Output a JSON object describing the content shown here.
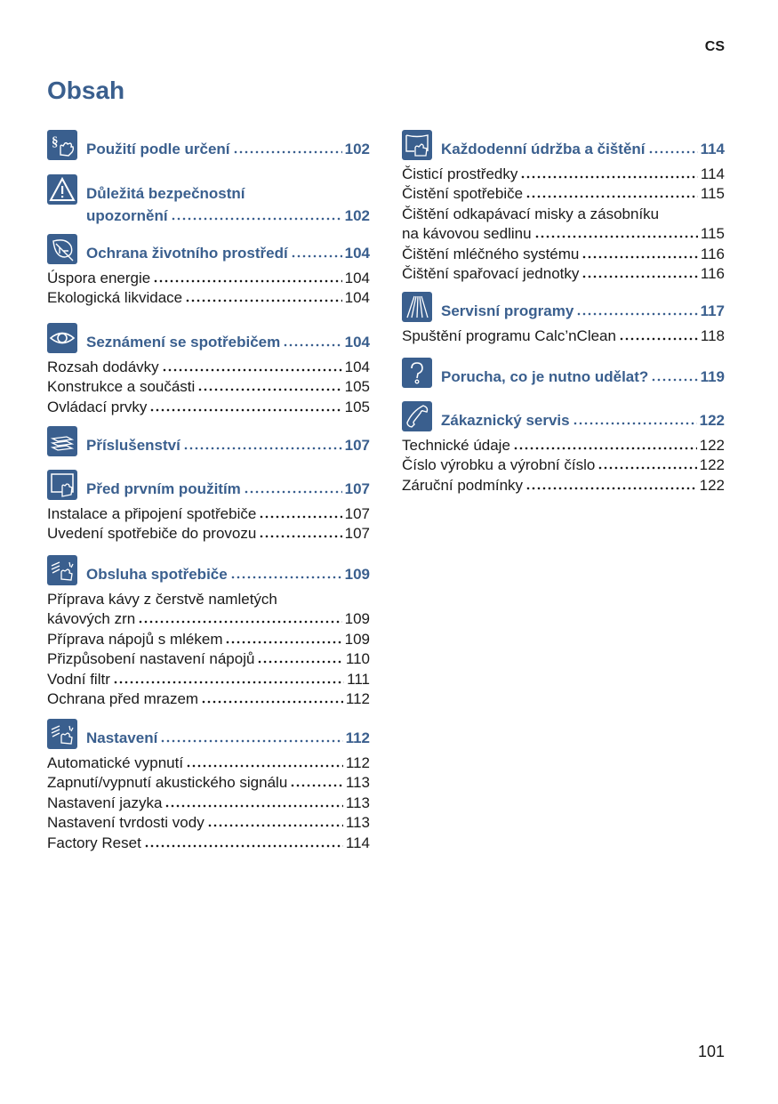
{
  "lang": "CS",
  "title": "Obsah",
  "page_number": "101",
  "accent_color": "#3a5f8e",
  "sections": [
    {
      "icon": "paragraph-hand-icon",
      "heading": "Použití podle určení",
      "page": "102",
      "entries": []
    },
    {
      "icon": "warning-icon",
      "heading_pre": "Důležitá bezpečnostní",
      "heading": "upozornění",
      "page": "102",
      "entries": []
    },
    {
      "icon": "leaf-icon",
      "heading": "Ochrana životního prostředí",
      "page": "104",
      "entries": [
        {
          "label": "Úspora energie",
          "page": "104"
        },
        {
          "label": "Ekologická likvidace",
          "page": "104"
        }
      ]
    },
    {
      "icon": "eye-icon",
      "heading": "Seznámení se spotřebičem",
      "page": "104",
      "entries": [
        {
          "label": "Rozsah dodávky",
          "page": "104"
        },
        {
          "label": "Konstrukce a součásti",
          "page": "105"
        },
        {
          "label": "Ovládací prvky",
          "page": "105"
        }
      ]
    },
    {
      "icon": "accessories-icon",
      "heading": "Příslušenství",
      "page": "107",
      "entries": []
    },
    {
      "icon": "first-use-icon",
      "heading": "Před prvním použitím",
      "page": "107",
      "entries": [
        {
          "label": "Instalace a připojení spotřebiče",
          "page": "107"
        },
        {
          "label": "Uvedení spotřebiče do provozu",
          "page": "107"
        }
      ]
    },
    {
      "icon": "operation-hand-icon",
      "heading": "Obsluha spotřebiče",
      "page": "109",
      "entries": [
        {
          "pre": "Příprava kávy z čerstvě namletých",
          "label": "kávových zrn",
          "page": "109"
        },
        {
          "label": "Příprava nápojů s mlékem",
          "page": "109"
        },
        {
          "label": "Přizpůsobení nastavení nápojů",
          "page": "110"
        },
        {
          "label": "Vodní filtr",
          "page": "111"
        },
        {
          "label": "Ochrana před mrazem",
          "page": "112"
        }
      ]
    },
    {
      "icon": "settings-hand-icon",
      "heading": "Nastavení",
      "page": "112",
      "entries": [
        {
          "label": "Automatické vypnutí",
          "page": "112"
        },
        {
          "label": "Zapnutí/vypnutí akustického signálu",
          "page": "113"
        },
        {
          "label": "Nastavení jazyka",
          "page": "113"
        },
        {
          "label": "Nastavení tvrdosti vody",
          "page": "113"
        },
        {
          "label": "Factory Reset",
          "page": "114"
        }
      ]
    },
    {
      "icon": "cleaning-hand-icon",
      "heading": "Každodenní údržba a čištění",
      "page": "114",
      "entries": [
        {
          "label": "Čisticí prostředky",
          "page": "114"
        },
        {
          "label": "Čistění spotřebiče",
          "page": "115"
        },
        {
          "pre": "Čištění odkapávací misky a zásobníku",
          "label": "na kávovou sedlinu",
          "page": "115"
        },
        {
          "label": "Čištění mléčného systému",
          "page": "116"
        },
        {
          "label": "Čištění spařovací jednotky",
          "page": "116"
        }
      ]
    },
    {
      "icon": "service-programs-icon",
      "heading": "Servisní programy",
      "page": "117",
      "entries": [
        {
          "label": "Spuštění programu Calc’nClean",
          "page": "118"
        }
      ]
    },
    {
      "icon": "question-icon",
      "heading": "Porucha, co je nutno udělat?",
      "page": "119",
      "entries": []
    },
    {
      "icon": "phone-icon",
      "heading": "Zákaznický servis",
      "page": "122",
      "entries": [
        {
          "label": "Technické údaje",
          "page": "122"
        },
        {
          "label": "Číslo výrobku a výrobní číslo",
          "page": "122"
        },
        {
          "label": "Záruční podmínky",
          "page": "122"
        }
      ]
    }
  ]
}
